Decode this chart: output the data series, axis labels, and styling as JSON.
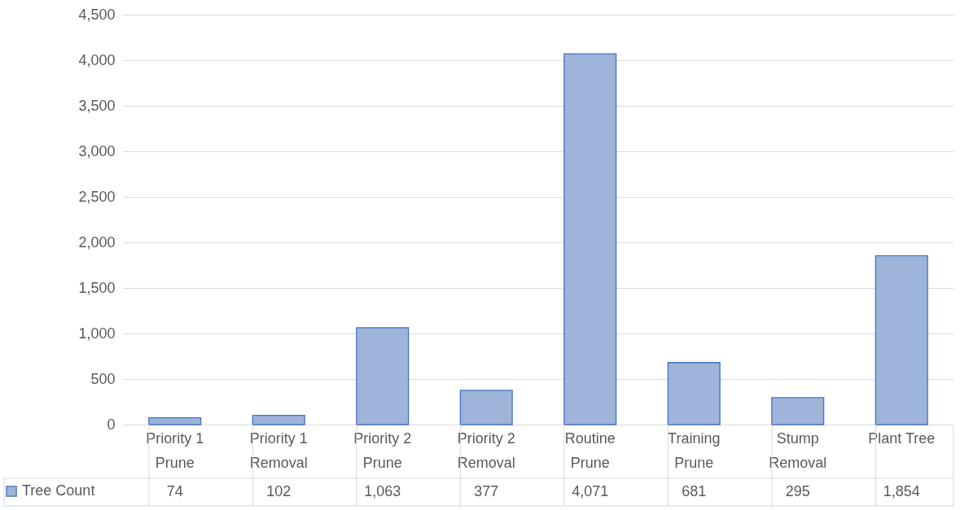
{
  "chart_data": {
    "type": "bar",
    "categories": [
      "Priority 1 Prune",
      "Priority 1 Removal",
      "Priority 2 Prune",
      "Priority 2 Removal",
      "Routine Prune",
      "Training Prune",
      "Stump Removal",
      "Plant Tree"
    ],
    "series": [
      {
        "name": "Tree Count",
        "color": "#9fb4d9",
        "values": [
          74,
          102,
          1063,
          377,
          4071,
          681,
          295,
          1854
        ],
        "value_labels": [
          "74",
          "102",
          "1,063",
          "377",
          "4,071",
          "681",
          "295",
          "1,854"
        ]
      }
    ],
    "ylim": [
      0,
      4500
    ],
    "yticks": [
      0,
      500,
      {
        "value": 1000,
        "label": "1,000"
      },
      {
        "value": 1500,
        "label": "1,500"
      },
      {
        "value": 2000,
        "label": "2,000"
      },
      {
        "value": 2500,
        "label": "2,500"
      },
      {
        "value": 3000,
        "label": "3,000"
      },
      {
        "value": 3500,
        "label": "3,500"
      },
      {
        "value": 4000,
        "label": "4,000"
      },
      {
        "value": 4500,
        "label": "4,500"
      }
    ],
    "grid": "y",
    "legend": "bottom left"
  }
}
